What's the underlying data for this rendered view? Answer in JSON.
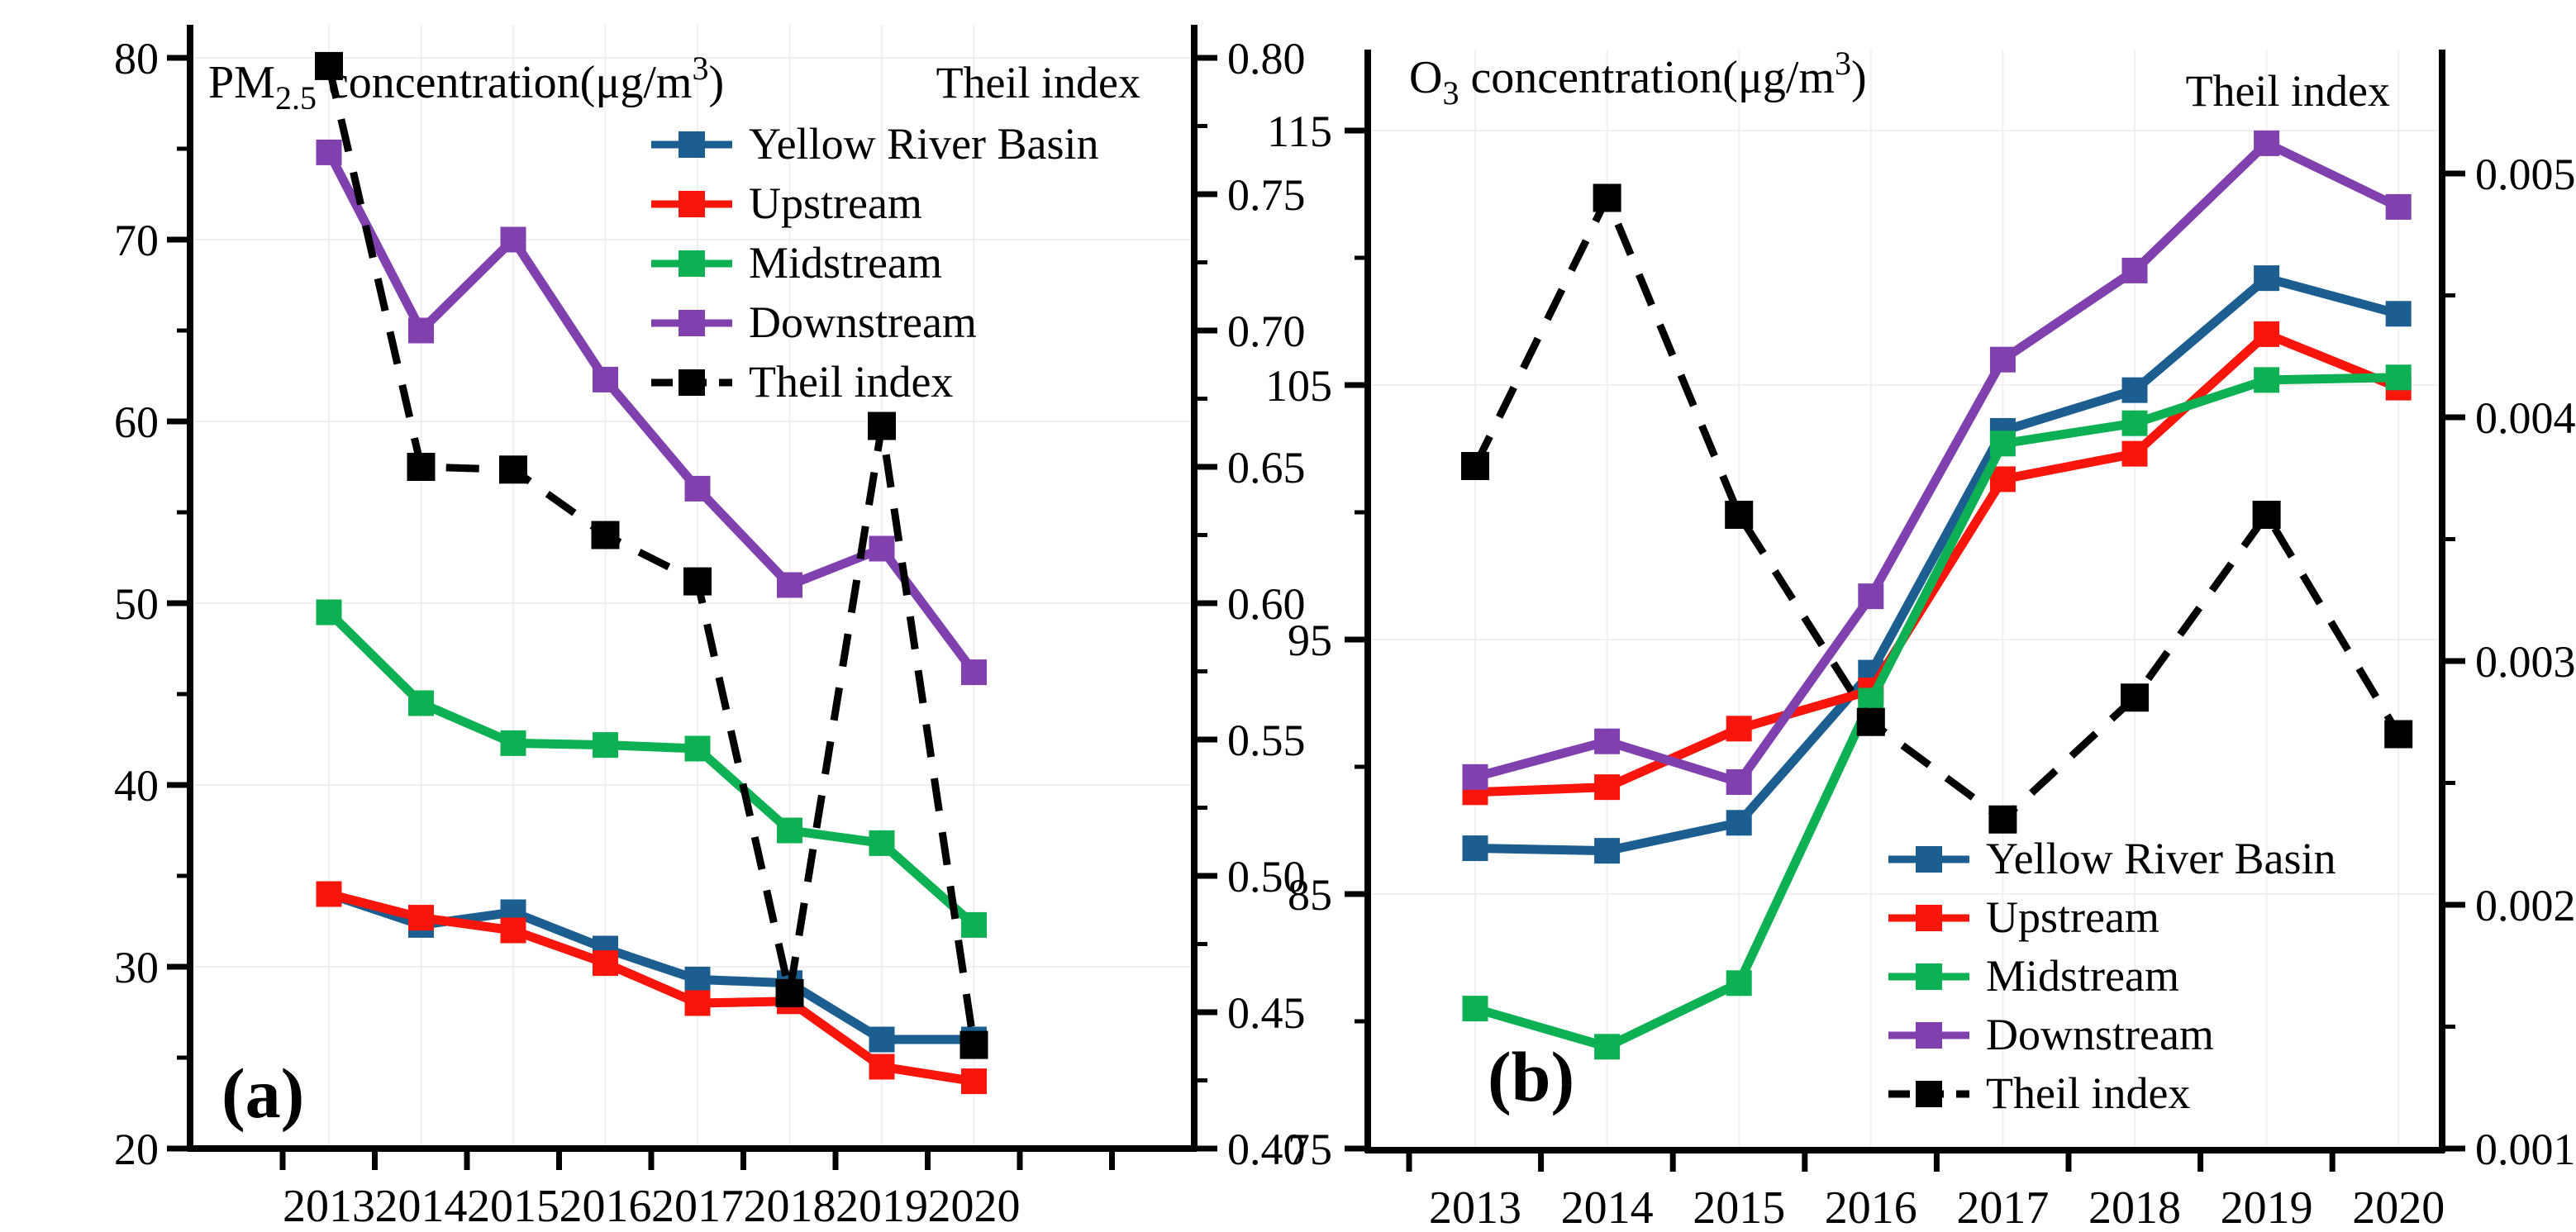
{
  "figure": {
    "background_color": "#ffffff",
    "grid_color": "#f2eff2",
    "axis_color": "#000000"
  },
  "chart_data": [
    {
      "type": "line",
      "panel_label": "(a)",
      "title_parts": {
        "base": "PM",
        "sub": "2.5",
        "mid": " concentration(μg/m",
        "sup": "3",
        "end": ")"
      },
      "right_axis_title": "Theil index",
      "legend_position": "upper-right",
      "grid": "faint",
      "x": [
        "2013",
        "2014",
        "2015",
        "2016",
        "2017",
        "2018",
        "2019",
        "2020"
      ],
      "left_axis": {
        "min": 20,
        "max": 80,
        "label_values": [
          20,
          30,
          40,
          50,
          60,
          70,
          80
        ],
        "tick_labels": [
          "20",
          "30",
          "40",
          "50",
          "60",
          "70",
          "80"
        ],
        "minor_step": 5
      },
      "right_axis": {
        "min": 0.4,
        "max": 0.8,
        "label_values": [
          0.4,
          0.45,
          0.5,
          0.55,
          0.6,
          0.65,
          0.7,
          0.75,
          0.8
        ],
        "tick_labels": [
          "0.40",
          "0.45",
          "0.50",
          "0.55",
          "0.60",
          "0.65",
          "0.70",
          "0.75",
          "0.80"
        ],
        "minor_step": 0.025
      },
      "series": [
        {
          "name": "Yellow River Basin",
          "color": "#1b5e8f",
          "axis": "left",
          "dashed": false,
          "values": [
            34.0,
            32.3,
            33.0,
            31.0,
            29.3,
            29.1,
            26.0,
            26.0
          ]
        },
        {
          "name": "Upstream",
          "color": "#f8150c",
          "axis": "left",
          "dashed": false,
          "values": [
            34.0,
            32.7,
            32.0,
            30.2,
            28.0,
            28.1,
            24.5,
            23.7
          ]
        },
        {
          "name": "Midstream",
          "color": "#0db153",
          "axis": "left",
          "dashed": false,
          "values": [
            49.5,
            44.5,
            42.3,
            42.2,
            42.0,
            37.5,
            36.8,
            32.3
          ]
        },
        {
          "name": "Downstream",
          "color": "#8040ad",
          "axis": "left",
          "dashed": false,
          "values": [
            74.8,
            65.0,
            70.0,
            62.3,
            56.3,
            51.0,
            53.0,
            46.2
          ]
        },
        {
          "name": "Theil index",
          "color": "#000000",
          "axis": "right",
          "dashed": true,
          "values": [
            0.797,
            0.65,
            0.649,
            0.625,
            0.608,
            0.457,
            0.665,
            0.438
          ]
        }
      ]
    },
    {
      "type": "line",
      "panel_label": "(b)",
      "title_parts": {
        "base": "O",
        "sub": "3",
        "mid": " concentration(μg/m",
        "sup": "3",
        "end": ")"
      },
      "right_axis_title": "Theil index",
      "legend_position": "lower-right",
      "grid": "faint",
      "x": [
        "2013",
        "2014",
        "2015",
        "2016",
        "2017",
        "2018",
        "2019",
        "2020"
      ],
      "left_axis": {
        "min": 75,
        "max": 115,
        "label_values": [
          75,
          85,
          95,
          105,
          115
        ],
        "tick_labels": [
          "75",
          "85",
          "95",
          "105",
          "115"
        ],
        "minor_step": 5
      },
      "right_axis": {
        "min": 0.001,
        "max": 0.005,
        "label_values": [
          0.001,
          0.002,
          0.003,
          0.004,
          0.005
        ],
        "tick_labels": [
          "0.001",
          "0.002",
          "0.003",
          "0.004",
          "0.005"
        ],
        "minor_step": 0.0005
      },
      "series": [
        {
          "name": "Yellow River Basin",
          "color": "#1b5e8f",
          "axis": "left",
          "dashed": false,
          "values": [
            86.8,
            86.7,
            87.8,
            93.7,
            103.2,
            104.8,
            109.2,
            107.8
          ]
        },
        {
          "name": "Upstream",
          "color": "#f8150c",
          "axis": "left",
          "dashed": false,
          "values": [
            89.0,
            89.2,
            91.5,
            93.0,
            101.3,
            102.3,
            107.0,
            104.9
          ]
        },
        {
          "name": "Midstream",
          "color": "#0db153",
          "axis": "left",
          "dashed": false,
          "values": [
            80.5,
            79.0,
            81.5,
            92.6,
            102.7,
            103.5,
            105.2,
            105.3
          ]
        },
        {
          "name": "Downstream",
          "color": "#8040ad",
          "axis": "left",
          "dashed": false,
          "values": [
            89.6,
            91.0,
            89.4,
            96.7,
            106.0,
            109.5,
            114.5,
            112.0
          ]
        },
        {
          "name": "Theil index",
          "color": "#000000",
          "axis": "right",
          "dashed": true,
          "values": [
            0.0038,
            0.0049,
            0.0036,
            0.00275,
            0.00235,
            0.00285,
            0.0036,
            0.0027
          ]
        }
      ]
    }
  ]
}
